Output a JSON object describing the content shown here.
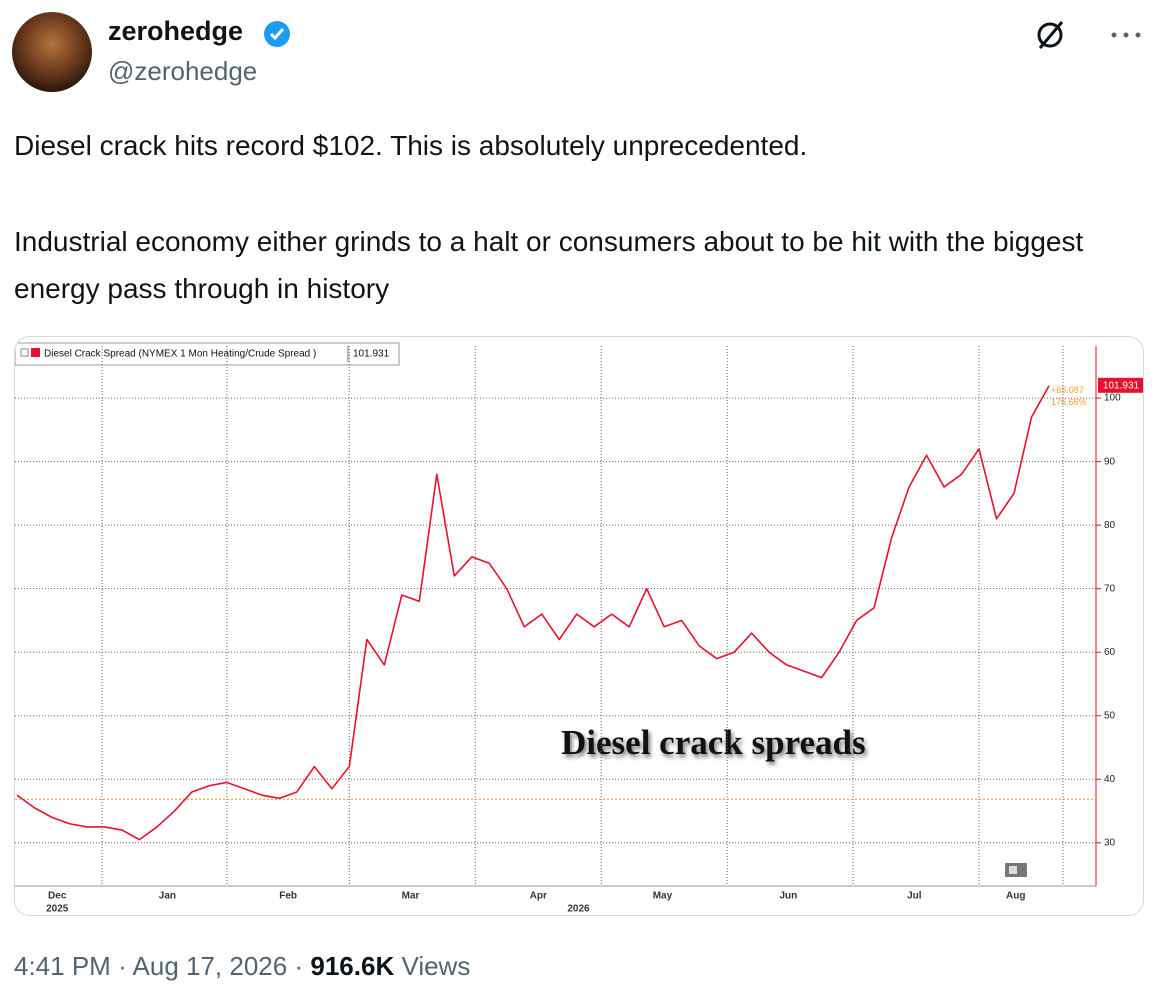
{
  "tweet": {
    "name": "zerohedge",
    "handle": "@zerohedge",
    "text_1": "Diesel crack hits record $102. This is absolutely unprecedented.",
    "text_2": "Industrial economy either grinds to a halt or consumers about to be hit with the biggest energy pass through in history",
    "time": "4:41 PM",
    "separator": "·",
    "date": "Aug 17, 2026",
    "views": "916.6K",
    "views_label": "Views"
  },
  "chart_data": {
    "type": "line",
    "annotation": "Diesel crack spreads",
    "series": [
      {
        "name": "Diesel Crack Spread (NYMEX 1 Mon Heating/Crude Spread )",
        "color": "#e8112d",
        "values": [
          37.5,
          35.5,
          34,
          33,
          32.5,
          32.5,
          32,
          30.5,
          32.5,
          35,
          38,
          39,
          39.5,
          38.5,
          37.5,
          37,
          38,
          42,
          38.5,
          42,
          62,
          58,
          69,
          68,
          88,
          72,
          75,
          74,
          70,
          64,
          66,
          62,
          66,
          64,
          66,
          64,
          70,
          64,
          65,
          61,
          59,
          60,
          63,
          60,
          58,
          57,
          56,
          60,
          65,
          67,
          78,
          86,
          91,
          86,
          88,
          92,
          81,
          85,
          97,
          101.931
        ]
      }
    ],
    "reference_line": 36.844,
    "reference_color": "#f0a030",
    "change": {
      "value": 65.087,
      "label": "+65.087"
    },
    "change_pct": {
      "value": 176.66,
      "label": "176.66%"
    },
    "xlim": [
      0,
      59
    ],
    "xticks": [
      {
        "value": 2.3,
        "label": "Dec"
      },
      {
        "value": 8.6,
        "label": "Jan"
      },
      {
        "value": 15.5,
        "label": "Feb"
      },
      {
        "value": 22.5,
        "label": "Mar"
      },
      {
        "value": 29.8,
        "label": "Apr"
      },
      {
        "value": 36.9,
        "label": "May"
      },
      {
        "value": 44.1,
        "label": "Jun"
      },
      {
        "value": 51.3,
        "label": "Jul"
      },
      {
        "value": 57.1,
        "label": "Aug"
      }
    ],
    "xticks_year": [
      {
        "value": 2.3,
        "label": "2025"
      },
      {
        "value": 32.1,
        "label": "2026"
      }
    ],
    "xgrid": [
      4.86,
      12.0,
      19.0,
      26.2,
      33.4,
      40.6,
      47.8,
      55.0,
      59.8
    ],
    "ylim": [
      23.2,
      108.2
    ],
    "yticks": [
      30,
      40,
      50,
      60,
      70,
      80,
      90,
      100
    ],
    "grid": true
  }
}
